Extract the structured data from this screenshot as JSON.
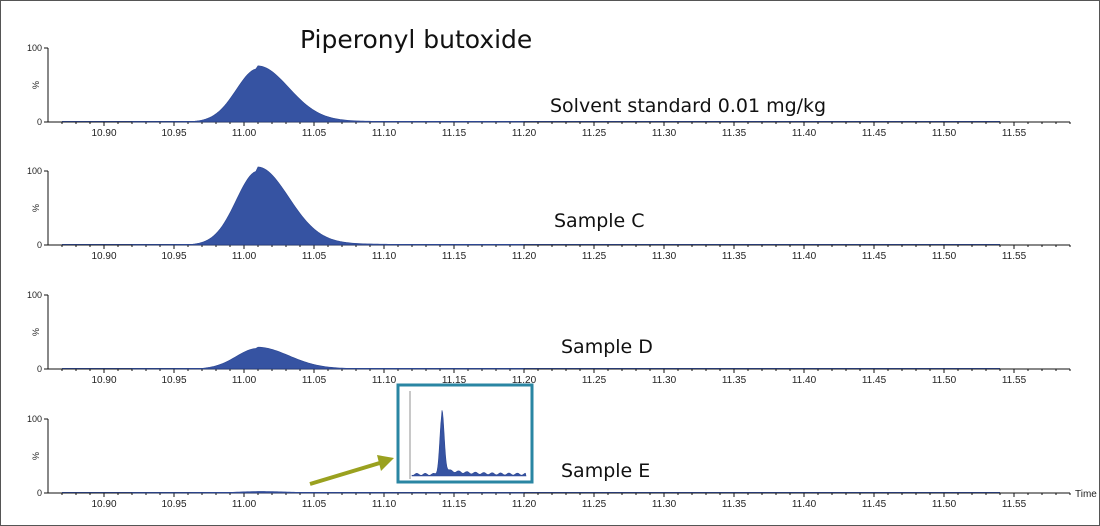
{
  "chart_data": {
    "type": "area",
    "title": "Piperonyl butoxide",
    "xlabel": "Time",
    "ylabel": "%",
    "xlim": [
      10.86,
      11.59
    ],
    "ylim": [
      0,
      100
    ],
    "x_ticks": [
      "10.90",
      "10.95",
      "11.00",
      "11.05",
      "11.10",
      "11.15",
      "11.20",
      "11.25",
      "11.30",
      "11.35",
      "11.40",
      "11.45",
      "11.50",
      "11.55"
    ],
    "y_ticks": [
      "0",
      "%",
      "100"
    ],
    "series": [
      {
        "name": "Solvent standard 0.01 mg/kg",
        "peak_rt": 11.01,
        "peak_height": 72
      },
      {
        "name": "Sample C",
        "peak_rt": 11.01,
        "peak_height": 100
      },
      {
        "name": "Sample D",
        "peak_rt": 11.01,
        "peak_height": 28
      },
      {
        "name": "Sample E",
        "peak_rt": 11.01,
        "peak_height": 2
      }
    ],
    "inset": {
      "series": "Sample E",
      "x_range": [
        11.105,
        11.2
      ],
      "peak_rt": 11.13,
      "peak_height": 70
    }
  }
}
